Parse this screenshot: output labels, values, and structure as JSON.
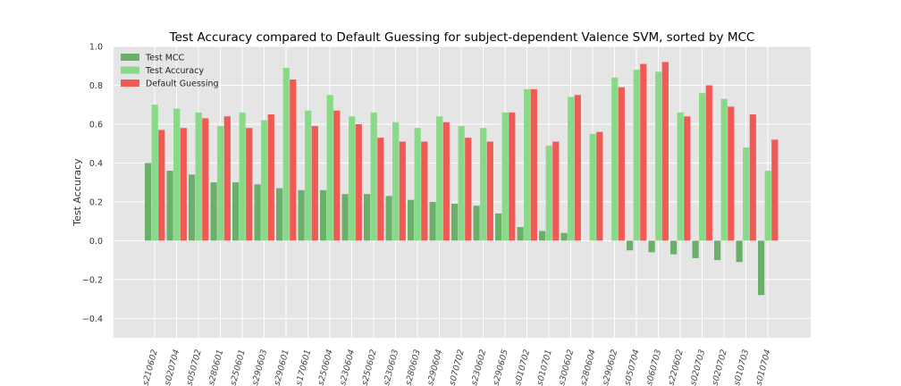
{
  "chart_data": {
    "type": "bar",
    "title": "Test Accuracy compared to Default Guessing  for subject-dependent Valence SVM, sorted by MCC",
    "xlabel": "",
    "ylabel": "Test Accuracy",
    "ylim": [
      -0.5,
      1.0
    ],
    "yticks": [
      -0.4,
      -0.2,
      0.0,
      0.2,
      0.4,
      0.6,
      0.8,
      1.0
    ],
    "ytick_labels": [
      "−0.4",
      "−0.2",
      "0.0",
      "0.2",
      "0.4",
      "0.6",
      "0.8",
      "1.0"
    ],
    "grid": true,
    "legend_position": "top-left",
    "categories": [
      "s210602",
      "s020704",
      "s050702",
      "s280601",
      "s250601",
      "s290603",
      "s290601",
      "s170601",
      "s250604",
      "s230604",
      "s250602",
      "s230603",
      "s280603",
      "s290604",
      "s070702",
      "s230602",
      "s290605",
      "s010702",
      "s010701",
      "s300602",
      "s280604",
      "s290602",
      "s050704",
      "s060703",
      "s220602",
      "s020703",
      "s020702",
      "s010703",
      "s010704"
    ],
    "series": [
      {
        "name": "Test MCC",
        "color": "#6aaf6a",
        "values": [
          0.4,
          0.36,
          0.34,
          0.3,
          0.3,
          0.29,
          0.27,
          0.26,
          0.26,
          0.24,
          0.24,
          0.23,
          0.21,
          0.2,
          0.19,
          0.18,
          0.14,
          0.07,
          0.05,
          0.04,
          0.0,
          0.0,
          -0.05,
          -0.06,
          -0.07,
          -0.09,
          -0.1,
          -0.11,
          -0.28
        ]
      },
      {
        "name": "Test Accuracy",
        "color": "#88da88",
        "values": [
          0.7,
          0.68,
          0.66,
          0.59,
          0.66,
          0.62,
          0.89,
          0.67,
          0.75,
          0.64,
          0.66,
          0.61,
          0.58,
          0.64,
          0.59,
          0.58,
          0.66,
          0.78,
          0.49,
          0.74,
          0.55,
          0.84,
          0.88,
          0.87,
          0.66,
          0.76,
          0.73,
          0.48,
          0.36
        ]
      },
      {
        "name": "Default Guessing",
        "color": "#f05a55",
        "values": [
          0.57,
          0.58,
          0.63,
          0.64,
          0.58,
          0.65,
          0.83,
          0.59,
          0.67,
          0.6,
          0.53,
          0.51,
          0.51,
          0.61,
          0.53,
          0.51,
          0.66,
          0.78,
          0.51,
          0.75,
          0.56,
          0.79,
          0.91,
          0.92,
          0.64,
          0.8,
          0.69,
          0.65,
          0.52
        ]
      }
    ]
  }
}
